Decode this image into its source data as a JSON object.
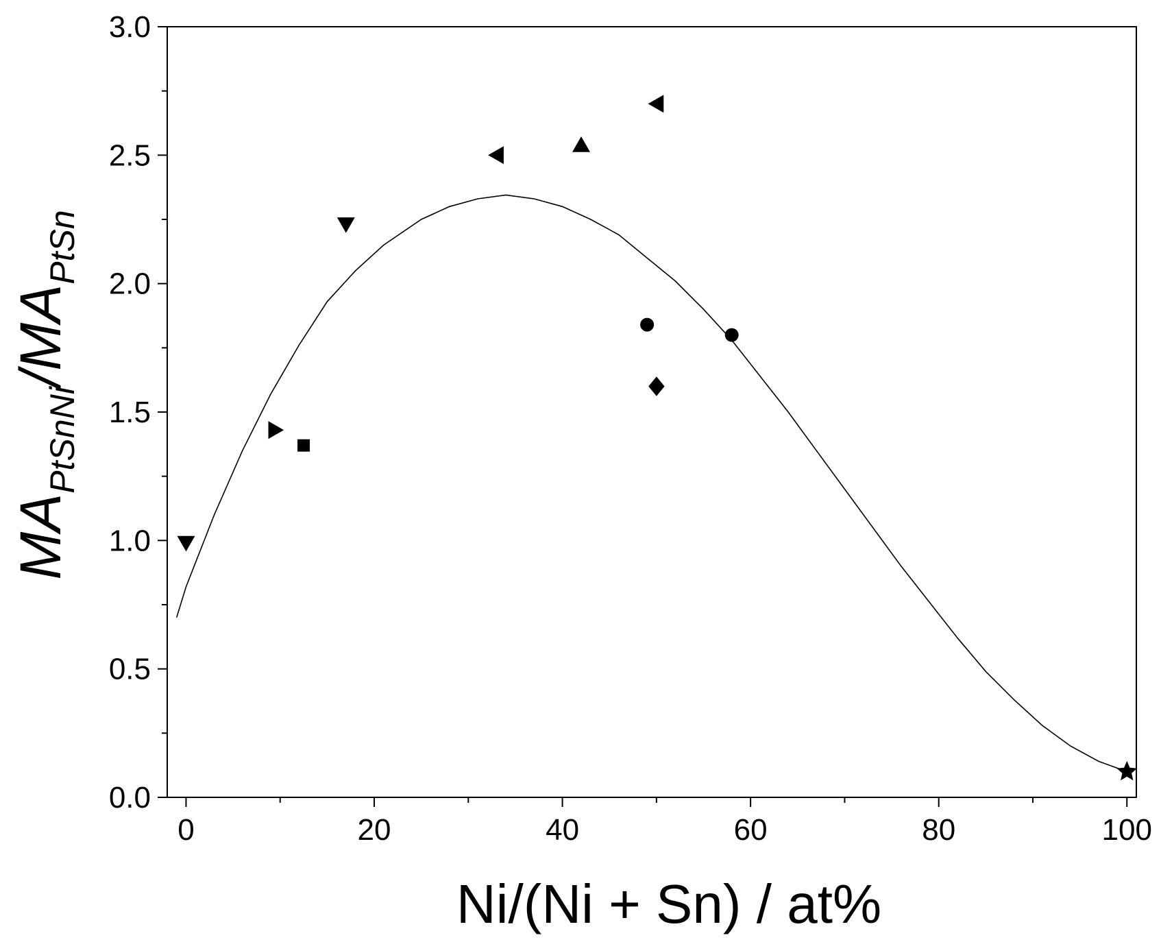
{
  "chart_data": {
    "type": "scatter",
    "xlabel": "Ni/(Ni + Sn) / at%",
    "ylabel": {
      "parts": [
        {
          "text": "MA",
          "sub": false
        },
        {
          "text": "PtSnNi",
          "sub": true
        },
        {
          "text": "/MA",
          "sub": false
        },
        {
          "text": "PtSn",
          "sub": true
        }
      ]
    },
    "xlim": [
      -2,
      101
    ],
    "ylim": [
      0,
      3.0
    ],
    "x_major_ticks": [
      0,
      20,
      40,
      60,
      80,
      100
    ],
    "x_tick_labels": [
      "0",
      "20",
      "40",
      "60",
      "80",
      "100"
    ],
    "x_minor_ticks": [
      10,
      30,
      50,
      70,
      90
    ],
    "y_major_ticks": [
      0,
      0.5,
      1.0,
      1.5,
      2.0,
      2.5,
      3.0
    ],
    "y_tick_labels": [
      "0.0",
      "0.5",
      "1.0",
      "1.5",
      "2.0",
      "2.5",
      "3.0"
    ],
    "y_minor_ticks": [
      0.25,
      0.75,
      1.25,
      1.75,
      2.25,
      2.75
    ],
    "grid": false,
    "legend": "none",
    "series": [
      {
        "marker": "triangle-down",
        "points": [
          {
            "x": 0,
            "y": 0.99
          },
          {
            "x": 17,
            "y": 2.23
          }
        ]
      },
      {
        "marker": "triangle-right",
        "points": [
          {
            "x": 9.5,
            "y": 1.43
          }
        ]
      },
      {
        "marker": "square",
        "points": [
          {
            "x": 12.5,
            "y": 1.37
          }
        ]
      },
      {
        "marker": "triangle-left",
        "points": [
          {
            "x": 33,
            "y": 2.5
          },
          {
            "x": 50,
            "y": 2.7
          }
        ]
      },
      {
        "marker": "triangle-up",
        "points": [
          {
            "x": 42,
            "y": 2.54
          }
        ]
      },
      {
        "marker": "circle",
        "points": [
          {
            "x": 49,
            "y": 1.84
          },
          {
            "x": 58,
            "y": 1.8
          }
        ]
      },
      {
        "marker": "diamond",
        "points": [
          {
            "x": 50,
            "y": 1.6
          }
        ]
      },
      {
        "marker": "star",
        "points": [
          {
            "x": 100,
            "y": 0.1
          }
        ]
      }
    ],
    "curve": {
      "x": [
        -1,
        0,
        3,
        6,
        9,
        12,
        15,
        18,
        21,
        25,
        28,
        31,
        34,
        37,
        40,
        43,
        46,
        49,
        52,
        55,
        58,
        61,
        64,
        67,
        70,
        73,
        76,
        79,
        82,
        85,
        88,
        91,
        94,
        97,
        100
      ],
      "y": [
        0.7,
        0.82,
        1.1,
        1.35,
        1.57,
        1.76,
        1.93,
        2.05,
        2.15,
        2.25,
        2.3,
        2.33,
        2.345,
        2.33,
        2.3,
        2.25,
        2.19,
        2.1,
        2.01,
        1.9,
        1.78,
        1.64,
        1.5,
        1.35,
        1.2,
        1.05,
        0.9,
        0.76,
        0.62,
        0.49,
        0.38,
        0.28,
        0.2,
        0.14,
        0.1
      ]
    },
    "colors": {
      "ink": "#000000",
      "background": "#ffffff"
    }
  }
}
